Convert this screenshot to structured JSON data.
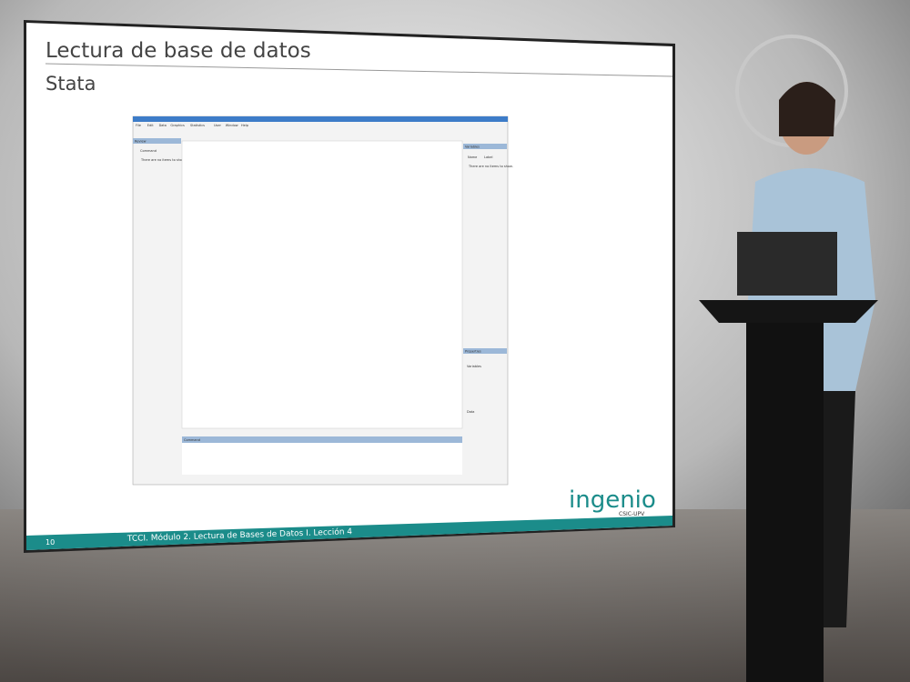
{
  "slide": {
    "title": "Lectura de base de datos",
    "subtitle": "Stata",
    "footer": "TCCI. Módulo 2. Lectura de Bases de Datos I. Lección 4",
    "page_number": "10",
    "logo": {
      "name": "ingenio",
      "tagline": "CSIC-UPV"
    }
  },
  "stata_window": {
    "menu": [
      "File",
      "Edit",
      "Data",
      "Graphics",
      "Statistics",
      "User",
      "Window",
      "Help"
    ],
    "review_panel": {
      "title": "Review",
      "column": "Command",
      "empty": "There are no items to show."
    },
    "variables_panel": {
      "title": "Variables",
      "columns": [
        "Name",
        "Label"
      ],
      "empty": "There are no items to show."
    },
    "properties_panel": {
      "title": "Properties",
      "groups": [
        "Variables",
        "Data"
      ]
    },
    "command_panel": {
      "title": "Command"
    }
  }
}
